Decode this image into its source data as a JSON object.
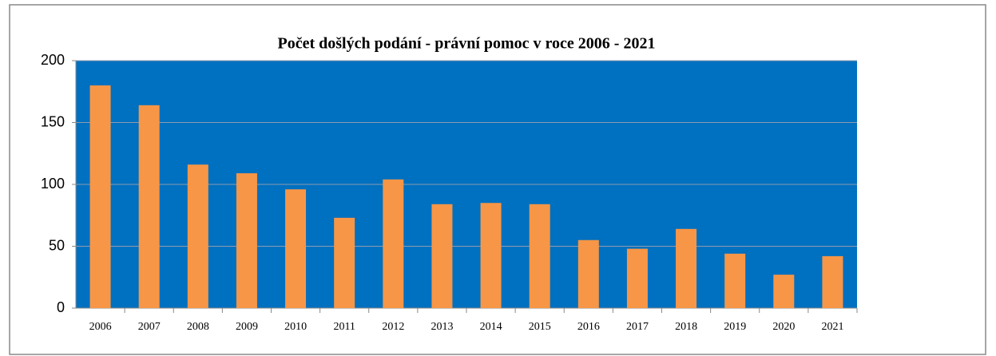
{
  "chart_data": {
    "type": "bar",
    "title": "Počet došlých podání - právní pomoc v roce 2006 - 2021",
    "categories": [
      "2006",
      "2007",
      "2008",
      "2009",
      "2010",
      "2011",
      "2012",
      "2013",
      "2014",
      "2015",
      "2016",
      "2017",
      "2018",
      "2019",
      "2020",
      "2021"
    ],
    "values": [
      180,
      164,
      116,
      109,
      96,
      73,
      104,
      84,
      85,
      84,
      55,
      48,
      64,
      44,
      27,
      42
    ],
    "color": "#f79646",
    "plot_background": "#0070c0",
    "ylim": [
      0,
      200
    ],
    "yticks": [
      0,
      50,
      100,
      150,
      200
    ],
    "grid": true
  }
}
